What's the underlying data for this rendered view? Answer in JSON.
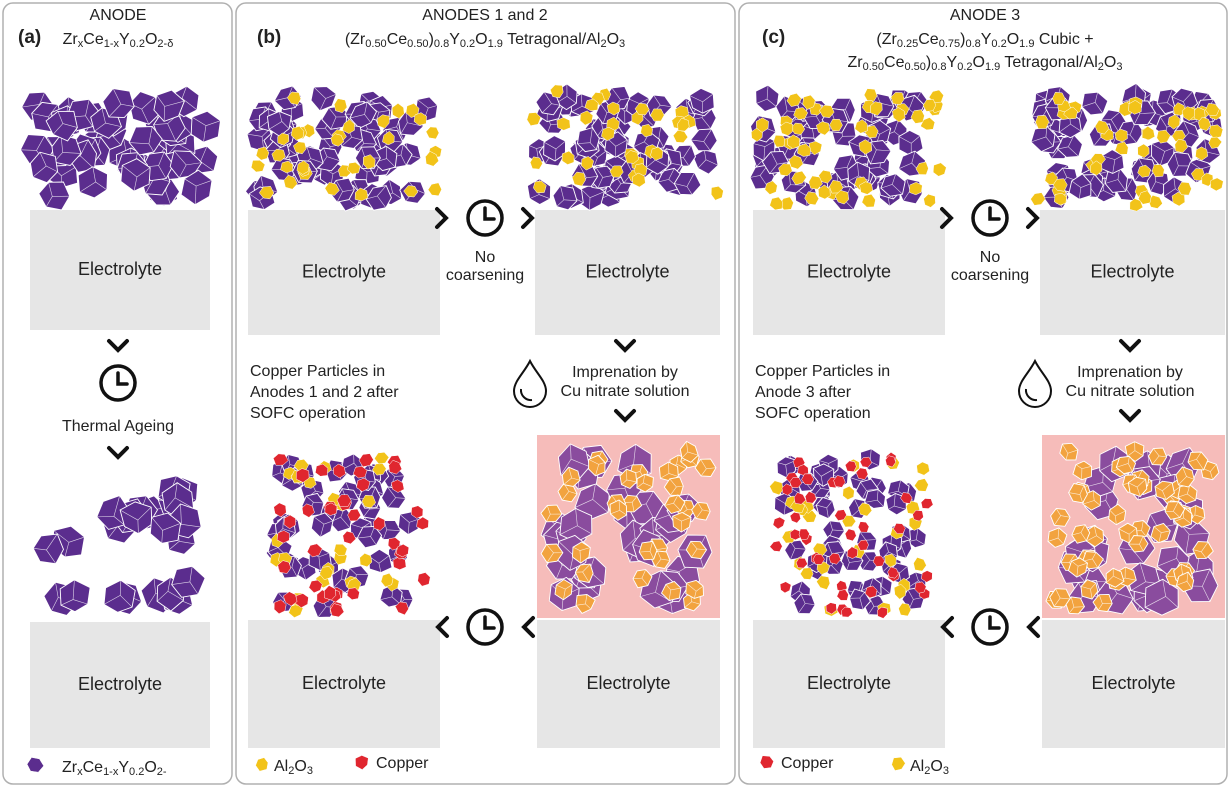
{
  "panel_a": {
    "label": "(a)",
    "title": "ANODE",
    "formula": [
      "Zr",
      "x",
      "Ce",
      "1-x",
      "Y",
      "0.2",
      "O",
      "2-δ"
    ],
    "electrolyte_top": "Electrolyte",
    "step": "Thermal Ageing",
    "electrolyte_bottom": "Electrolyte",
    "legend": [
      "Zr",
      "x",
      "Ce",
      "1-x",
      "Y",
      "0.2",
      "O",
      "2-"
    ]
  },
  "panel_b": {
    "label": "(b)",
    "title": "ANODES 1 and 2",
    "formula": [
      "(Zr",
      "0.50",
      "Ce",
      "0.50",
      ")",
      "0.8",
      "Y",
      "0.2",
      "O",
      "1.9",
      " Tetragonal/Al",
      "2",
      "O",
      "3"
    ],
    "electrolyte_1": "Electrolyte",
    "no_coarsening": [
      "No",
      "coarsening"
    ],
    "electrolyte_2": "Electrolyte",
    "impregnation": [
      "Imprenation by",
      "Cu nitrate solution"
    ],
    "electrolyte_3": "Electrolyte",
    "result": [
      "Copper Particles in",
      "Anodes 1 and 2 after",
      "SOFC operation"
    ],
    "electrolyte_4": "Electrolyte",
    "legend_al2o3": [
      "Al",
      "2",
      "O",
      "3"
    ],
    "legend_copper": "Copper"
  },
  "panel_c": {
    "label": "(c)",
    "title": "ANODE 3",
    "formula_1": [
      "(Zr",
      "0.25",
      "Ce",
      "0.75",
      ")",
      "0.8",
      "Y",
      "0.2",
      "O",
      "1.9",
      " Cubic +"
    ],
    "formula_2": [
      "Zr",
      "0.50",
      "Ce",
      "0.50",
      ")",
      "0.8",
      "Y",
      "0.2",
      "O",
      "1.9",
      " Tetragonal/Al",
      "2",
      "O",
      "3"
    ],
    "electrolyte_1": "Electrolyte",
    "no_coarsening": [
      "No",
      "coarsening"
    ],
    "electrolyte_2": "Electrolyte",
    "impregnation": [
      "Imprenation by",
      "Cu nitrate solution"
    ],
    "electrolyte_3": "Electrolyte",
    "result": [
      "Copper Particles in",
      "Anode 3 after",
      "SOFC operation"
    ],
    "electrolyte_4": "Electrolyte",
    "legend_copper": "Copper",
    "legend_al2o3": [
      "Al",
      "2",
      "O",
      "3"
    ]
  }
}
